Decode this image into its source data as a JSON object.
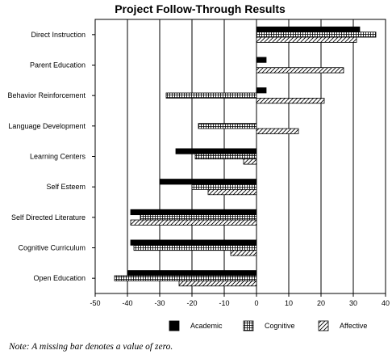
{
  "chart_data": {
    "type": "bar",
    "orientation": "horizontal",
    "title": "Project Follow-Through Results",
    "categories": [
      "Direct Instruction",
      "Parent Education",
      "Behavior Reinforcement",
      "Language Development",
      "Learning Centers",
      "Self Esteem",
      "Self Directed Literature",
      "Cognitive Curriculum",
      "Open Education"
    ],
    "series": [
      {
        "name": "Academic",
        "pattern": "solid",
        "values": [
          32,
          3,
          3,
          0,
          -25,
          -30,
          -39,
          -39,
          -40
        ]
      },
      {
        "name": "Cognitive",
        "pattern": "crosshatch",
        "values": [
          37,
          0,
          -28,
          -18,
          -19,
          -20,
          -36,
          -38,
          -44
        ]
      },
      {
        "name": "Affective",
        "pattern": "diagonal",
        "values": [
          31,
          27,
          21,
          13,
          -4,
          -15,
          -39,
          -8,
          -24
        ]
      }
    ],
    "xlim": [
      -50,
      40
    ],
    "xticks": [
      -50,
      -40,
      -30,
      -20,
      -10,
      0,
      10,
      20,
      30,
      40
    ],
    "grid": "vertical",
    "legend": "bottom",
    "xlabel": "",
    "ylabel": ""
  },
  "note": "Note: A missing bar denotes a value of zero.",
  "colors": {
    "bar": "#000000",
    "background": "#ffffff"
  }
}
